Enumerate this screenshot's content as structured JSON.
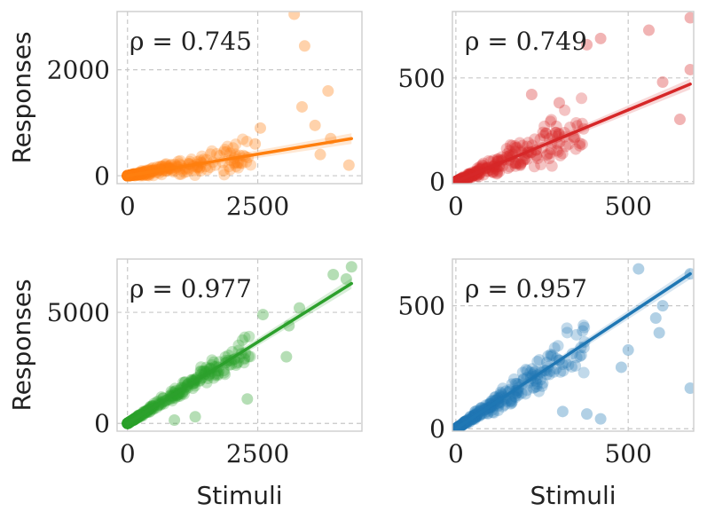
{
  "chart_data": [
    {
      "type": "scatter",
      "color": "#ff7f0e",
      "rho": "ρ = 0.745",
      "xlim": [
        -200,
        4500
      ],
      "ylim": [
        -150,
        3100
      ],
      "xticks": [
        0,
        2500
      ],
      "xtick_labels": [
        "0",
        "2500"
      ],
      "yticks": [
        0,
        2000
      ],
      "ytick_labels": [
        "0",
        "2000"
      ],
      "xgrid": [
        0,
        2500
      ],
      "ygrid": [
        0,
        2000
      ],
      "ylabel": "Responses",
      "xlabel": "",
      "fit": [
        [
          0,
          0
        ],
        [
          4300,
          700
        ]
      ],
      "seed": 11,
      "slope": 0.16,
      "xmax": 4300,
      "skew": 3.2,
      "noise": 0.9,
      "multiplicative": true,
      "outliers": [
        [
          3200,
          3050
        ],
        [
          3400,
          2450
        ],
        [
          3350,
          1300
        ],
        [
          3850,
          1600
        ],
        [
          3600,
          950
        ],
        [
          3900,
          700
        ],
        [
          2550,
          900
        ],
        [
          2450,
          600
        ],
        [
          3700,
          400
        ],
        [
          4250,
          200
        ]
      ]
    },
    {
      "type": "scatter",
      "color": "#d62728",
      "rho": "ρ = 0.749",
      "xlim": [
        -10,
        690
      ],
      "ylim": [
        -10,
        820
      ],
      "xticks": [
        0,
        500
      ],
      "xtick_labels": [
        "0",
        "500"
      ],
      "yticks": [
        0,
        500
      ],
      "ytick_labels": [
        "0",
        "500"
      ],
      "xgrid": [
        0,
        500
      ],
      "ygrid": [
        0,
        500
      ],
      "ylabel": "",
      "xlabel": "",
      "fit": [
        [
          0,
          0
        ],
        [
          680,
          470
        ]
      ],
      "seed": 23,
      "slope": 0.69,
      "xmax": 680,
      "skew": 2.6,
      "noise": 0.55,
      "multiplicative": true,
      "outliers": [
        [
          680,
          790
        ],
        [
          560,
          730
        ],
        [
          420,
          690
        ],
        [
          380,
          660
        ],
        [
          600,
          480
        ],
        [
          680,
          540
        ],
        [
          650,
          300
        ],
        [
          220,
          420
        ],
        [
          300,
          380
        ]
      ]
    },
    {
      "type": "scatter",
      "color": "#2ca02c",
      "rho": "ρ = 0.977",
      "xlim": [
        -200,
        4500
      ],
      "ylim": [
        -350,
        7400
      ],
      "xticks": [
        0,
        2500
      ],
      "xtick_labels": [
        "0",
        "2500"
      ],
      "yticks": [
        0,
        5000
      ],
      "ytick_labels": [
        "0",
        "5000"
      ],
      "xgrid": [
        0,
        2500
      ],
      "ygrid": [
        0,
        5000
      ],
      "ylabel": "Responses",
      "xlabel": "Stimuli",
      "fit": [
        [
          0,
          0
        ],
        [
          4300,
          6300
        ]
      ],
      "seed": 37,
      "slope": 1.46,
      "xmax": 4300,
      "skew": 2.2,
      "noise": 0.18,
      "multiplicative": true,
      "outliers": [
        [
          4300,
          7050
        ],
        [
          4200,
          6500
        ],
        [
          3950,
          6700
        ],
        [
          3300,
          5200
        ],
        [
          3100,
          4400
        ],
        [
          3050,
          3000
        ],
        [
          2600,
          4900
        ],
        [
          2300,
          1100
        ],
        [
          1300,
          300
        ],
        [
          900,
          150
        ]
      ]
    },
    {
      "type": "scatter",
      "color": "#1f77b4",
      "rho": "ρ = 0.957",
      "xlim": [
        -10,
        690
      ],
      "ylim": [
        -10,
        690
      ],
      "xticks": [
        0,
        500
      ],
      "xtick_labels": [
        "0",
        "500"
      ],
      "yticks": [
        0,
        500
      ],
      "ytick_labels": [
        "0",
        "500"
      ],
      "xgrid": [
        0,
        500
      ],
      "ygrid": [
        0,
        500
      ],
      "ylabel": "",
      "xlabel": "Stimuli",
      "fit": [
        [
          0,
          0
        ],
        [
          680,
          630
        ]
      ],
      "seed": 53,
      "slope": 0.93,
      "xmax": 680,
      "skew": 2.4,
      "noise": 0.32,
      "multiplicative": true,
      "outliers": [
        [
          530,
          650
        ],
        [
          680,
          630
        ],
        [
          600,
          500
        ],
        [
          580,
          450
        ],
        [
          590,
          390
        ],
        [
          680,
          165
        ],
        [
          500,
          320
        ],
        [
          480,
          250
        ],
        [
          380,
          60
        ],
        [
          420,
          40
        ],
        [
          310,
          70
        ]
      ]
    }
  ]
}
